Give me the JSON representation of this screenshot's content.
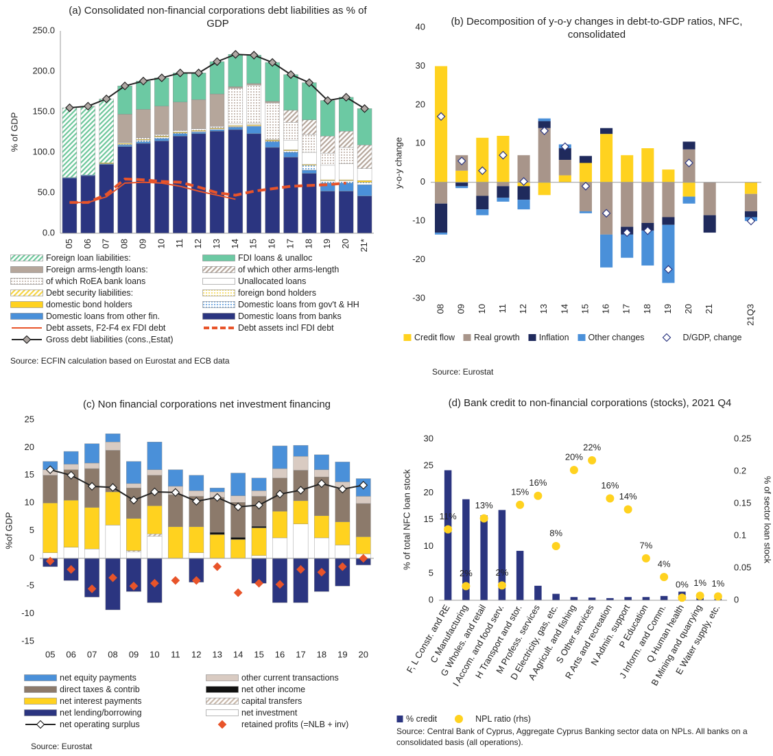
{
  "chart_data": [
    {
      "type": "bar",
      "title": "(a) Consolidated non-financial corporations debt liabilities as % of GDP",
      "y_label": "% of GDP",
      "source": "Source: ECFIN calculation based on Eurostat and ECB data",
      "categories": [
        "05",
        "06",
        "07",
        "08",
        "09",
        "10",
        "11",
        "12",
        "13",
        "14",
        "15",
        "16",
        "17",
        "18",
        "19",
        "20",
        "21*"
      ],
      "ylim": [
        0,
        250
      ],
      "yticks": [
        {
          "value": 0,
          "label": "0.0"
        },
        {
          "value": 50,
          "label": "50.0"
        },
        {
          "value": 100,
          "label": "100.0"
        },
        {
          "value": 150,
          "label": "150.0"
        },
        {
          "value": 200,
          "label": "200.0"
        },
        {
          "value": 250,
          "label": "250.0"
        }
      ],
      "series": [
        {
          "name": "Foreign loan liabilities:",
          "type": "bar",
          "color": "#6cc69a",
          "pattern": "hatch",
          "values": [
            86,
            85,
            79,
            0,
            0,
            0,
            0,
            0,
            0,
            0,
            0,
            0,
            0,
            0,
            0,
            0,
            0
          ]
        },
        {
          "name": "FDI loans & unalloc",
          "type": "bar",
          "color": "#6cc9a3",
          "values": [
            0,
            0,
            0,
            35,
            35,
            35,
            36,
            33,
            40,
            40,
            35,
            48,
            44,
            46,
            44,
            42,
            45
          ]
        },
        {
          "name": "Foreign arms-length loans:",
          "type": "bar",
          "color": "#b5a69b",
          "values": [
            0,
            0,
            0,
            35,
            35,
            35,
            35,
            36,
            40,
            2,
            2,
            2,
            0,
            0,
            0,
            0,
            0
          ]
        },
        {
          "name": "of which other arms-length",
          "type": "bar",
          "color": "#b5a69b",
          "pattern": "hatch",
          "values": [
            0,
            0,
            0,
            0,
            0,
            0,
            0,
            0,
            0,
            0,
            0,
            0,
            15,
            18,
            21,
            20,
            29
          ]
        },
        {
          "name": "of which RoEA bank loans",
          "type": "bar",
          "color": "#b5a69b",
          "pattern": "dots",
          "values": [
            0,
            0,
            0,
            1,
            2,
            2,
            2,
            2,
            2,
            44,
            47,
            45,
            22,
            22,
            15,
            20,
            0
          ]
        },
        {
          "name": "Unallocated loans",
          "type": "bar",
          "color": "#ffffff",
          "values": [
            0,
            0,
            0,
            0,
            0,
            0,
            0,
            0,
            0,
            2,
            2,
            0,
            12,
            15,
            18,
            20,
            15
          ]
        },
        {
          "name": "Debt security liabilities:",
          "type": "bar",
          "color": "#f5d442",
          "pattern": "hatch",
          "values": [
            0,
            0,
            0,
            0,
            0,
            0,
            0,
            0,
            0,
            0,
            0,
            0,
            0,
            0,
            0,
            0,
            0
          ]
        },
        {
          "name": "foreign bond holders",
          "type": "bar",
          "color": "#f5d442",
          "pattern": "dots",
          "values": [
            0,
            0,
            0,
            0,
            0,
            0,
            0,
            0,
            0,
            0,
            0,
            1,
            0,
            0,
            0,
            0,
            0
          ]
        },
        {
          "name": "domestic bond holders",
          "type": "bar",
          "color": "#ffd21f",
          "values": [
            0,
            0,
            1,
            1,
            1,
            1,
            1,
            1,
            1,
            1,
            1,
            1,
            1,
            1,
            1,
            1,
            2
          ]
        },
        {
          "name": "Domestic loans from gov't & HH",
          "type": "bar",
          "color": "#4a90d9",
          "pattern": "dots",
          "values": [
            0,
            0,
            0,
            1,
            2,
            2,
            1,
            1,
            1,
            1,
            1,
            1,
            2,
            6,
            3,
            3,
            3
          ]
        },
        {
          "name": "Domestic loans from other fin.",
          "type": "bar",
          "color": "#4a90d9",
          "values": [
            1,
            1,
            1,
            2,
            2,
            3,
            3,
            2,
            2,
            3,
            9,
            7,
            6,
            4,
            10,
            10,
            14
          ]
        },
        {
          "name": "Domestic loans from banks",
          "type": "bar",
          "color": "#2b3580",
          "values": [
            68,
            71,
            85,
            107,
            111,
            114,
            120,
            123,
            126,
            128,
            123,
            106,
            94,
            74,
            52,
            52,
            46
          ]
        },
        {
          "name": "Debt assets, F2-F4 ex FDI debt",
          "type": "line",
          "color": "#e8542a",
          "width": 2,
          "values": [
            38,
            38,
            45,
            62,
            63,
            62,
            58,
            52,
            47,
            42,
            null,
            null,
            null,
            null,
            null,
            null,
            null
          ]
        },
        {
          "name": "Debt assets incl FDI debt",
          "type": "line",
          "color": "#e8542a",
          "width": 4,
          "dash": true,
          "values": [
            38,
            38,
            48,
            67,
            66,
            64,
            63,
            57,
            50,
            47,
            52,
            55,
            58,
            59,
            60,
            62,
            null
          ]
        },
        {
          "name": "Gross debt liabilities (cons.,Estat)",
          "type": "line",
          "color": "#222222",
          "width": 2,
          "marker": "diamond",
          "marker_fill": "#b0a8a4",
          "values": [
            155,
            157,
            166,
            182,
            188,
            192,
            198,
            198,
            212,
            221,
            220,
            211,
            196,
            186,
            164,
            168,
            154
          ]
        }
      ]
    },
    {
      "type": "bar",
      "title": "(b) Decomposition of y-o-y changes in debt-to-GDP ratios, NFC, consolidated",
      "y_label": "y-o-y change",
      "source": "Source: Eurostat",
      "categories": [
        "08",
        "09",
        "10",
        "11",
        "12",
        "13",
        "14",
        "15",
        "16",
        "17",
        "18",
        "19",
        "20",
        "21",
        null,
        "21Q3"
      ],
      "ylim": [
        -30,
        40
      ],
      "yticks": [
        -30,
        -20,
        -10,
        0,
        10,
        20,
        30,
        40
      ],
      "series": [
        {
          "name": "Credit flow",
          "type": "bar",
          "color": "#ffd21f",
          "values": [
            30,
            3,
            11.5,
            12,
            -1,
            -3.3,
            1.8,
            5,
            12.5,
            7,
            8.8,
            3.3,
            -3.7,
            0,
            null,
            -3
          ]
        },
        {
          "name": "Real growth",
          "type": "bar",
          "color": "#a8958a",
          "values": [
            -5.5,
            4,
            -3.5,
            -1,
            7,
            14,
            4,
            -7.5,
            -13.5,
            -11.5,
            -10.5,
            -9,
            8.5,
            -8.5,
            null,
            -4.5
          ]
        },
        {
          "name": "Inflation",
          "type": "bar",
          "color": "#1f2a5c",
          "values": [
            -7.5,
            -1,
            -3.5,
            -3,
            -3.5,
            1.8,
            3,
            1.8,
            1.5,
            -2,
            -2,
            -2,
            2,
            -4.5,
            null,
            -1.5
          ]
        },
        {
          "name": "Other changes",
          "type": "bar",
          "color": "#4a90d9",
          "values": [
            -0.5,
            -0.5,
            -1.5,
            -1,
            -2.5,
            0.7,
            1,
            -0.5,
            -8.5,
            -6,
            -9,
            -15,
            -1.8,
            0,
            null,
            -1
          ]
        },
        {
          "name": "D/GDP, change",
          "type": "scatter",
          "color": "#2b3580",
          "marker": "diamond",
          "marker_fill": "#ffffff",
          "values": [
            17,
            5.5,
            3,
            7,
            0.2,
            13.3,
            9.2,
            -1,
            -8,
            -13,
            -12.5,
            -22.5,
            5,
            null,
            null,
            -10
          ]
        }
      ]
    },
    {
      "type": "bar",
      "title": "(c) Non financial corporations net investment financing",
      "y_label": "%of GDP",
      "source": "Source: Eurostat",
      "categories": [
        "05",
        "06",
        "07",
        "08",
        "09",
        "10",
        "11",
        "12",
        "13",
        "14",
        "15",
        "16",
        "17",
        "18",
        "19",
        "20"
      ],
      "ylim": [
        -15,
        25
      ],
      "yticks": [
        -15,
        -10,
        -5,
        0,
        5,
        10,
        15,
        20,
        25
      ],
      "series": [
        {
          "name": "net equity payments",
          "type": "bar",
          "color": "#4a90d9",
          "values": [
            1.5,
            2.3,
            3.5,
            1.5,
            4,
            5,
            3,
            2.8,
            0.7,
            4.1,
            2.3,
            4.1,
            2,
            2.7,
            3.6,
            3.2
          ]
        },
        {
          "name": "other current transactions",
          "type": "bar",
          "color": "#d9cbc2",
          "values": [
            1,
            1,
            1,
            1.5,
            0.8,
            1,
            1.5,
            1,
            1,
            1.2,
            1,
            1.7,
            2.5,
            1.3,
            1.2,
            1.3
          ]
        },
        {
          "name": "direct taxes & contrib",
          "type": "bar",
          "color": "#8c7a6b",
          "values": [
            5,
            5.5,
            7,
            7.5,
            5.5,
            5.5,
            5.8,
            5.5,
            6.3,
            6.3,
            5.4,
            6,
            5.5,
            7,
            6,
            6
          ]
        },
        {
          "name": "net other income",
          "type": "bar",
          "color": "#111111",
          "values": [
            0,
            0,
            0,
            0,
            0,
            0,
            0,
            0,
            0.4,
            0.4,
            0.3,
            0,
            0,
            0,
            0,
            0
          ]
        },
        {
          "name": "net interest payments",
          "type": "bar",
          "color": "#ffd21f",
          "values": [
            9,
            8.5,
            7.5,
            6,
            5.8,
            5.1,
            5.7,
            4.7,
            4.3,
            3.4,
            5,
            4.8,
            4.2,
            4,
            4.2,
            3.1
          ]
        },
        {
          "name": "capital transfers",
          "type": "bar",
          "color": "#c8b8aa",
          "pattern": "hatch",
          "values": [
            0,
            0,
            0,
            0,
            0.2,
            0.4,
            0,
            0,
            0,
            0,
            0,
            0,
            0,
            0,
            0,
            0
          ]
        },
        {
          "name": "net lending/borrowing",
          "type": "bar",
          "color": "#2b3580",
          "values": [
            -1.5,
            -4,
            -7,
            -9.3,
            -6,
            -8,
            0,
            -4.3,
            0,
            0,
            -4.5,
            -8,
            -8,
            -6,
            -5,
            -1.2
          ]
        },
        {
          "name": "net investment",
          "type": "bar",
          "color": "#ffffff",
          "values": [
            1,
            2,
            1.7,
            6,
            1.2,
            4,
            0,
            1,
            0,
            0,
            0.5,
            3.7,
            6.2,
            3.7,
            2.4,
            0.8
          ]
        },
        {
          "name": "net operating surplus",
          "type": "line",
          "color": "#222222",
          "width": 2,
          "marker": "diamond",
          "marker_fill": "#ffffff",
          "values": [
            16,
            15,
            13,
            12.8,
            10.5,
            12,
            11.9,
            10.3,
            11,
            9.3,
            9.6,
            11.6,
            12.3,
            13.5,
            12.5,
            13.2
          ]
        },
        {
          "name": "retained profits (=NLB + inv)",
          "type": "scatter",
          "color": "#e8542a",
          "marker": "diamond",
          "marker_fill": "#e8542a",
          "values": [
            -0.5,
            -2,
            -5.5,
            -3.5,
            -5,
            -4.5,
            -4,
            -4,
            -1.5,
            -6.2,
            -4.5,
            -4.7,
            -2,
            -2.5,
            -1.5,
            0
          ]
        }
      ]
    },
    {
      "type": "bar",
      "title": "(d) Bank credit to non-financial corporations (stocks), 2021 Q4",
      "y_label": "% of total NFC loan stock",
      "y2_label": "% of sector loan stock",
      "source": "Source: Central Bank of Cyprus, Aggregate Cyprus Banking sector data on NPLs. All banks on a consolidated basis (all operations).",
      "categories": [
        "F, L Constr. and RE",
        "C Manufacturing",
        "G Wholes. and retail",
        "I Accom. and food serv.",
        "H Transport and stor.",
        "M Profess. services",
        "D Electricity, gas, etc.",
        "A Agricult. and fishing",
        "S Other services",
        "R Arts and recreation",
        "N Admin. support",
        "P Education",
        "J Inform. and Comm.",
        "Q Human health",
        "B Mining and quarrying",
        "E Water supply, etc."
      ],
      "ylim": [
        0,
        30
      ],
      "yticks": [
        0,
        5,
        10,
        15,
        20,
        25,
        30
      ],
      "y2lim": [
        0,
        0.25
      ],
      "y2ticks": [
        0,
        0.05,
        0.1,
        0.15,
        0.2,
        0.25
      ],
      "series": [
        {
          "name": "% credit",
          "type": "bar",
          "color": "#2b3580",
          "values": [
            24.2,
            18.8,
            15.8,
            16.8,
            9.2,
            2.7,
            1.2,
            0.6,
            0.5,
            0.4,
            0.6,
            0.6,
            0.8,
            1.6,
            0.8,
            0.3
          ]
        },
        {
          "name": "NPL ratio (rhs)",
          "type": "scatter",
          "axis": "y2",
          "color": "#ffd21f",
          "marker": "circle",
          "marker_fill": "#ffd21f",
          "values": [
            0.11,
            0.022,
            0.127,
            0.023,
            0.148,
            0.162,
            0.084,
            0.202,
            0.217,
            0.158,
            0.141,
            0.065,
            0.036,
            0.004,
            0.007,
            0.006
          ],
          "value_labels": [
            "11%",
            "2%",
            "13%",
            "2%",
            "15%",
            "16%",
            "8%",
            "20%",
            "22%",
            "16%",
            "14%",
            "7%",
            "4%",
            "0%",
            "1%",
            "1%"
          ]
        }
      ]
    }
  ]
}
